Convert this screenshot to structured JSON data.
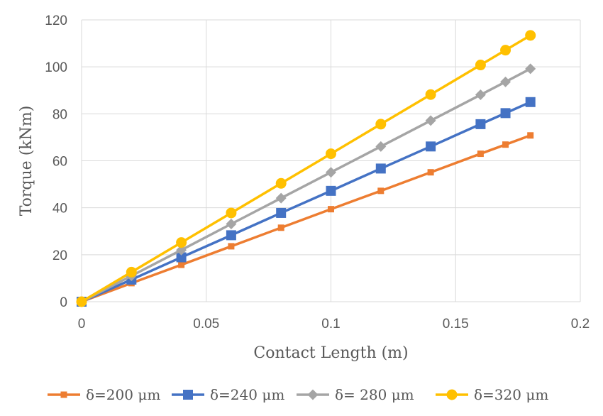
{
  "chart_data": {
    "type": "line",
    "xlabel": "Contact Length (m)",
    "ylabel": "Torque (kNm)",
    "xlim": [
      0,
      0.2
    ],
    "ylim": [
      0,
      120
    ],
    "x_ticks": [
      0,
      0.05,
      0.1,
      0.15,
      0.2
    ],
    "x_tick_labels": [
      "0",
      "0.05",
      "0.1",
      "0.15",
      "0.2"
    ],
    "y_ticks": [
      0,
      20,
      40,
      60,
      80,
      100,
      120
    ],
    "y_tick_labels": [
      "0",
      "20",
      "40",
      "60",
      "80",
      "100",
      "120"
    ],
    "grid": true,
    "legend_position": "bottom",
    "series": [
      {
        "name": "δ=200 μm",
        "color": "#ed7d31",
        "marker": "square-small",
        "x": [
          0,
          0.02,
          0.04,
          0.06,
          0.08,
          0.1,
          0.12,
          0.14,
          0.16,
          0.17,
          0.18
        ],
        "y": [
          0,
          7.9,
          15.7,
          23.6,
          31.5,
          39.4,
          47.2,
          55.1,
          63,
          66.9,
          70.8
        ]
      },
      {
        "name": "δ=240 μm",
        "color": "#4472c4",
        "marker": "square",
        "x": [
          0,
          0.02,
          0.04,
          0.06,
          0.08,
          0.1,
          0.12,
          0.14,
          0.16,
          0.17,
          0.18
        ],
        "y": [
          0,
          9.4,
          18.9,
          28.3,
          37.8,
          47.2,
          56.7,
          66.1,
          75.6,
          80.3,
          85
        ]
      },
      {
        "name": "δ= 280 μm",
        "color": "#a5a5a5",
        "marker": "diamond",
        "x": [
          0,
          0.02,
          0.04,
          0.06,
          0.08,
          0.1,
          0.12,
          0.14,
          0.16,
          0.17,
          0.18
        ],
        "y": [
          0,
          11,
          22,
          33.1,
          44.1,
          55.1,
          66.1,
          77.1,
          88.1,
          93.6,
          99.2
        ]
      },
      {
        "name": "δ=320 μm",
        "color": "#ffc000",
        "marker": "circle",
        "x": [
          0,
          0.02,
          0.04,
          0.06,
          0.08,
          0.1,
          0.12,
          0.14,
          0.16,
          0.17,
          0.18
        ],
        "y": [
          0,
          12.6,
          25.2,
          37.8,
          50.4,
          63,
          75.6,
          88.2,
          100.8,
          107.1,
          113.4
        ]
      }
    ]
  }
}
